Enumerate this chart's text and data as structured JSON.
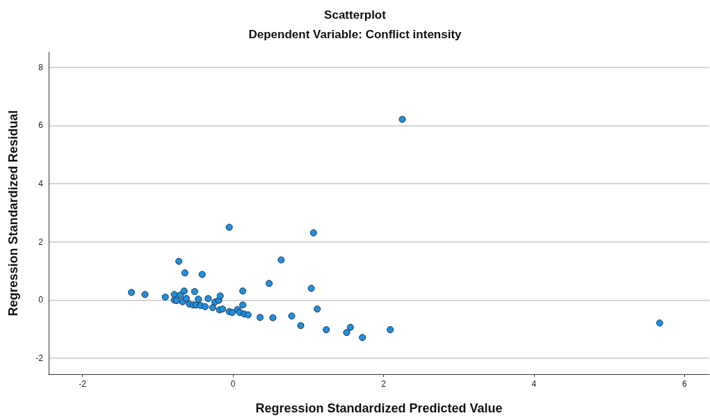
{
  "chart_data": {
    "type": "scatter",
    "title": "Scatterplot",
    "subtitle": "Dependent Variable: Conflict intensity",
    "xlabel": "Regression Standardized Predicted Value",
    "ylabel": "Regression Standardized Residual",
    "x": [
      5.67,
      2.25,
      -0.05,
      1.07,
      -0.72,
      0.64,
      -0.64,
      -0.41,
      0.48,
      1.04,
      0.13,
      -1.35,
      -1.17,
      -0.9,
      -0.78,
      -0.7,
      -0.65,
      -0.51,
      -0.78,
      -0.75,
      -0.67,
      -0.62,
      -0.58,
      -0.53,
      -0.49,
      -0.46,
      -0.43,
      -0.37,
      -0.33,
      -0.27,
      -0.24,
      -0.19,
      -0.17,
      -0.18,
      -0.14,
      -0.05,
      -0.01,
      0.06,
      0.13,
      0.09,
      0.15,
      0.2,
      0.36,
      0.53,
      1.12,
      0.78,
      0.9,
      1.24,
      1.51,
      1.56,
      1.72,
      2.09
    ],
    "values": [
      -0.79,
      6.21,
      2.5,
      2.31,
      1.33,
      1.38,
      0.93,
      0.88,
      0.57,
      0.4,
      0.31,
      0.26,
      0.19,
      0.1,
      0.19,
      0.17,
      0.31,
      0.29,
      0.0,
      -0.02,
      -0.06,
      0.05,
      -0.14,
      -0.17,
      -0.17,
      0.03,
      -0.19,
      -0.23,
      0.05,
      -0.26,
      -0.07,
      -0.01,
      0.14,
      -0.34,
      -0.31,
      -0.4,
      -0.43,
      -0.33,
      -0.17,
      -0.43,
      -0.48,
      -0.51,
      -0.6,
      -0.61,
      -0.31,
      -0.55,
      -0.88,
      -1.02,
      -1.12,
      -0.94,
      -1.29,
      -1.02
    ],
    "color": "#1f8fe0",
    "marker": "circle",
    "xlim": [
      -2.45,
      6.33
    ],
    "xticks": [
      -2,
      0,
      2,
      4,
      6
    ],
    "ylim": [
      -2.55,
      8.52
    ],
    "yticks": [
      -2,
      0,
      2,
      4,
      6,
      8
    ],
    "grid": "y"
  }
}
